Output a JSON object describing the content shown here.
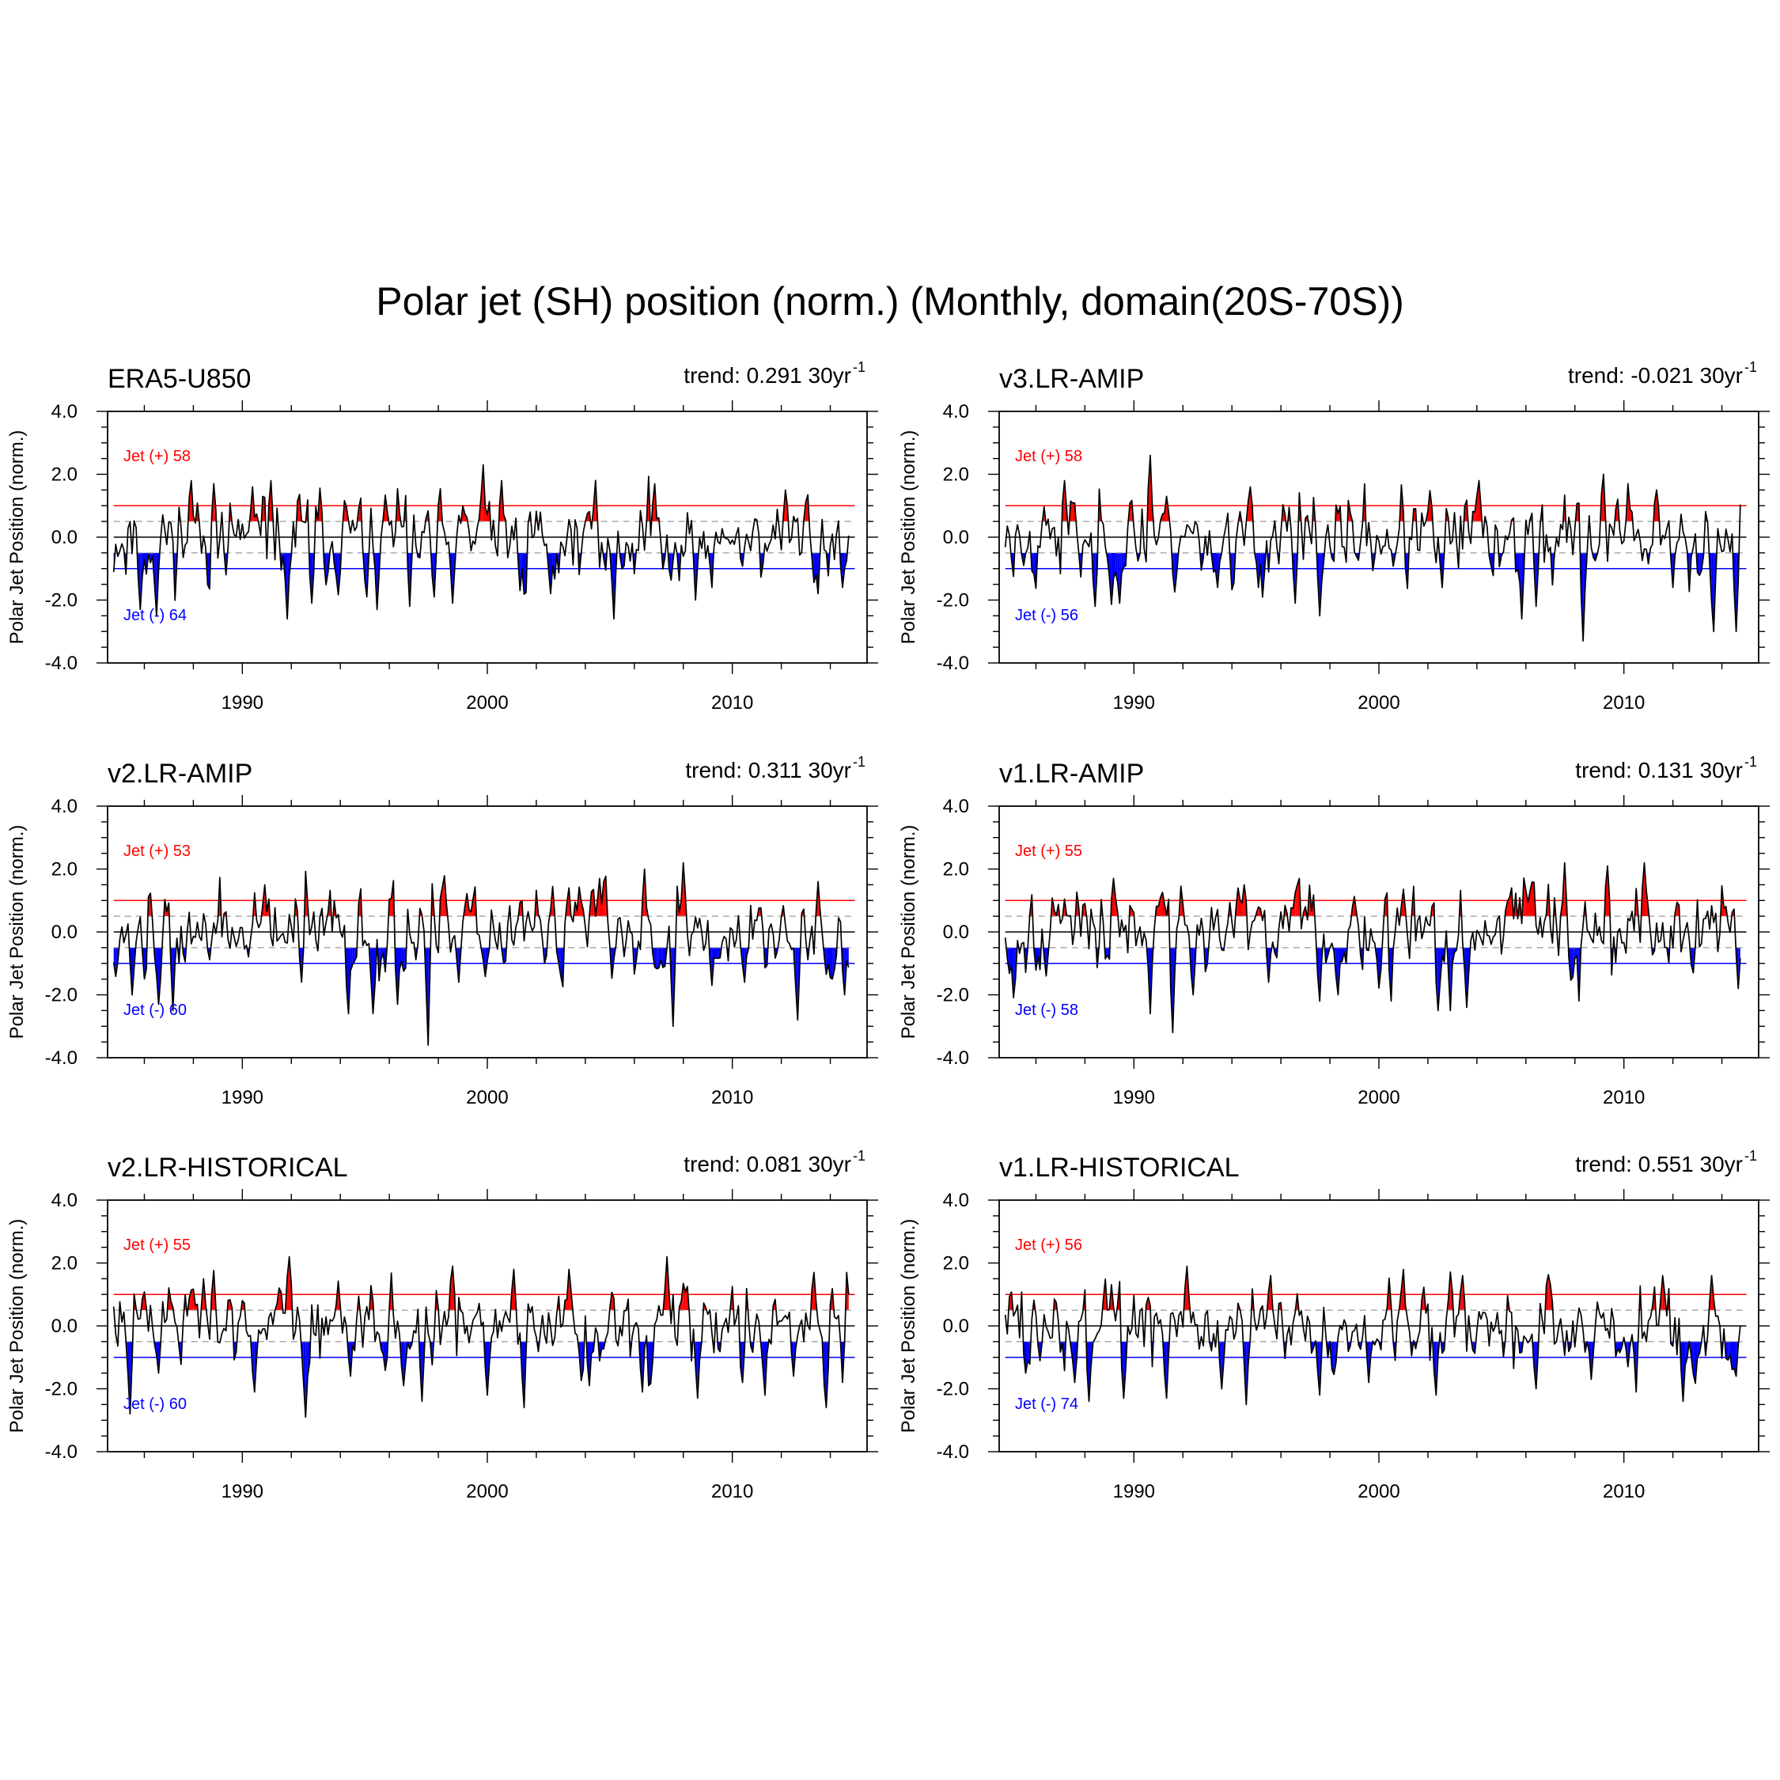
{
  "figure": {
    "title": "Polar jet (SH) position (norm.) (Monthly, domain(20S-70S))"
  },
  "shared_axes": {
    "ylabel": "Polar Jet Position (norm.)",
    "ylim": [
      -4,
      4
    ],
    "xlim": [
      1984.5,
      2015.5
    ],
    "yticks": [
      4,
      2,
      0,
      -2,
      -4
    ],
    "ytick_labels": [
      "4.0",
      "2.0",
      "0.0",
      "-2.0",
      "-4.0"
    ],
    "xticks": [
      1990,
      2000,
      2010
    ],
    "xtick_labels": [
      "1990",
      "2000",
      "2010"
    ],
    "threshold_upper": 1.0,
    "threshold_lower": -1.0,
    "threshold_inner": [
      0.5,
      -0.5
    ],
    "colors": {
      "positive": "#ff0000",
      "negative": "#0000ff",
      "line": "#000000",
      "threshold_upper": "#ff0000",
      "threshold_lower": "#0000ff",
      "dashed": "#9a9a9a"
    }
  },
  "chart_data": [
    {
      "type": "line",
      "name": "ERA5-U850",
      "trend_text": "trend: 0.291 30yr",
      "trend_sup": "-1",
      "pos_label": "Jet (+) 58",
      "neg_label": "Jet (-) 64",
      "seed": 11,
      "events": [
        [
          1985.8,
          -2.3
        ],
        [
          1986.5,
          -2.5
        ],
        [
          1987.9,
          1.8
        ],
        [
          1988.8,
          1.7
        ],
        [
          1989.3,
          -1.2
        ],
        [
          1991.2,
          1.8
        ],
        [
          1991.8,
          -2.6
        ],
        [
          1992.8,
          -2.1
        ],
        [
          1995.1,
          -1.9
        ],
        [
          1995.5,
          -2.3
        ],
        [
          1996.8,
          -2.2
        ],
        [
          1997.8,
          -1.9
        ],
        [
          1998.6,
          -2.1
        ],
        [
          1999.8,
          2.3
        ],
        [
          2000.6,
          1.8
        ],
        [
          2001.3,
          -1.7
        ],
        [
          2002.6,
          -1.8
        ],
        [
          2005.2,
          -2.6
        ],
        [
          2006.8,
          1.7
        ],
        [
          2008.5,
          -2.0
        ],
        [
          2009.2,
          -1.6
        ],
        [
          2012.2,
          1.5
        ],
        [
          2013.5,
          -1.8
        ],
        [
          2014.5,
          -1.6
        ]
      ]
    },
    {
      "type": "line",
      "name": "v3.LR-AMIP",
      "trend_text": "trend: -0.021 30yr",
      "trend_sup": "-1",
      "pos_label": "Jet (+) 58",
      "neg_label": "Jet (-) 56",
      "seed": 23,
      "events": [
        [
          1985.5,
          -0.9
        ],
        [
          1987.2,
          1.8
        ],
        [
          1988.4,
          -2.2
        ],
        [
          1989.4,
          -2.1
        ],
        [
          1990.7,
          2.6
        ],
        [
          1991.3,
          1.3
        ],
        [
          1993.4,
          -1.6
        ],
        [
          1995.1,
          -1.6
        ],
        [
          1996.6,
          -2.1
        ],
        [
          1997.6,
          -2.5
        ],
        [
          2002.6,
          -1.6
        ],
        [
          2004.1,
          1.8
        ],
        [
          2005.8,
          -2.6
        ],
        [
          2006.4,
          -2.2
        ],
        [
          2008.3,
          -3.3
        ],
        [
          2009.2,
          2.0
        ],
        [
          2010.2,
          1.7
        ],
        [
          2011.3,
          1.5
        ],
        [
          2012.0,
          -1.6
        ],
        [
          2013.7,
          -3.0
        ],
        [
          2014.6,
          -3.0
        ]
      ]
    },
    {
      "type": "line",
      "name": "v2.LR-AMIP",
      "trend_text": "trend: 0.311 30yr",
      "trend_sup": "-1",
      "pos_label": "Jet (+) 53",
      "neg_label": "Jet (-) 60",
      "seed": 37,
      "events": [
        [
          1985.5,
          -2.0
        ],
        [
          1986.6,
          -2.3
        ],
        [
          1987.2,
          -2.5
        ],
        [
          1990.9,
          1.5
        ],
        [
          1992.4,
          -1.6
        ],
        [
          1994.3,
          -2.6
        ],
        [
          1995.3,
          -2.6
        ],
        [
          1996.3,
          -2.3
        ],
        [
          1997.6,
          -3.6
        ],
        [
          1998.8,
          -1.6
        ],
        [
          2003.3,
          1.4
        ],
        [
          2004.6,
          1.7
        ],
        [
          2006.4,
          2.0
        ],
        [
          2007.6,
          -3.0
        ],
        [
          2008.0,
          2.2
        ],
        [
          2009.2,
          -1.7
        ],
        [
          2010.5,
          -1.6
        ],
        [
          2012.7,
          -2.8
        ],
        [
          2013.5,
          1.6
        ],
        [
          2014.6,
          -2.0
        ]
      ]
    },
    {
      "type": "line",
      "name": "v1.LR-AMIP",
      "trend_text": "trend: 0.131 30yr",
      "trend_sup": "-1",
      "pos_label": "Jet (+) 55",
      "neg_label": "Jet (-) 58",
      "seed": 49,
      "events": [
        [
          1986.4,
          -1.4
        ],
        [
          1989.2,
          1.7
        ],
        [
          1990.7,
          -2.6
        ],
        [
          1991.6,
          -3.2
        ],
        [
          1992.4,
          -2.0
        ],
        [
          1994.5,
          1.5
        ],
        [
          1995.5,
          -1.6
        ],
        [
          1997.6,
          -2.2
        ],
        [
          1998.3,
          -2.0
        ],
        [
          2000.5,
          -2.2
        ],
        [
          2002.4,
          -2.5
        ],
        [
          2002.9,
          -2.5
        ],
        [
          2003.6,
          -2.4
        ],
        [
          2005.4,
          1.4
        ],
        [
          2007.6,
          2.2
        ],
        [
          2009.3,
          2.1
        ],
        [
          2010.8,
          2.2
        ],
        [
          2012.8,
          -1.3
        ],
        [
          2014.7,
          -1.8
        ]
      ]
    },
    {
      "type": "line",
      "name": "v2.LR-HISTORICAL",
      "trend_text": "trend: 0.081 30yr",
      "trend_sup": "-1",
      "pos_label": "Jet (+) 55",
      "neg_label": "Jet (-) 60",
      "seed": 61,
      "events": [
        [
          1985.4,
          -2.8
        ],
        [
          1986.6,
          -1.5
        ],
        [
          1988.4,
          1.5
        ],
        [
          1990.5,
          -2.1
        ],
        [
          1991.9,
          2.2
        ],
        [
          1992.6,
          -2.9
        ],
        [
          1994.4,
          -1.6
        ],
        [
          1996.6,
          -1.9
        ],
        [
          1997.3,
          -2.4
        ],
        [
          1998.6,
          1.9
        ],
        [
          2000.0,
          -2.2
        ],
        [
          2001.1,
          1.8
        ],
        [
          2001.5,
          -2.6
        ],
        [
          2003.3,
          1.8
        ],
        [
          2004.2,
          -1.9
        ],
        [
          2006.3,
          -2.1
        ],
        [
          2007.3,
          2.2
        ],
        [
          2008.6,
          -2.3
        ],
        [
          2010.4,
          -1.8
        ],
        [
          2011.3,
          -2.2
        ],
        [
          2012.5,
          -1.6
        ],
        [
          2013.3,
          1.7
        ],
        [
          2013.8,
          -2.6
        ],
        [
          2014.5,
          -1.8
        ]
      ]
    },
    {
      "type": "line",
      "name": "v1.LR-HISTORICAL",
      "trend_text": "trend: 0.551 30yr",
      "trend_sup": "-1",
      "pos_label": "Jet (+) 56",
      "neg_label": "Jet (-) 74",
      "seed": 73,
      "events": [
        [
          1985.6,
          -1.5
        ],
        [
          1987.6,
          -1.8
        ],
        [
          1988.2,
          -2.4
        ],
        [
          1989.6,
          -2.3
        ],
        [
          1991.3,
          -2.3
        ],
        [
          1992.2,
          1.9
        ],
        [
          1993.6,
          -2.0
        ],
        [
          1994.6,
          -2.5
        ],
        [
          1995.6,
          1.6
        ],
        [
          1997.6,
          -2.2
        ],
        [
          1999.6,
          -1.8
        ],
        [
          2001.0,
          1.8
        ],
        [
          2002.3,
          -2.2
        ],
        [
          2003.4,
          1.6
        ],
        [
          2006.4,
          -2.0
        ],
        [
          2008.7,
          -1.7
        ],
        [
          2010.5,
          -2.1
        ],
        [
          2011.6,
          1.6
        ],
        [
          2012.4,
          -2.4
        ],
        [
          2013.6,
          1.6
        ],
        [
          2014.6,
          -1.6
        ]
      ]
    }
  ]
}
